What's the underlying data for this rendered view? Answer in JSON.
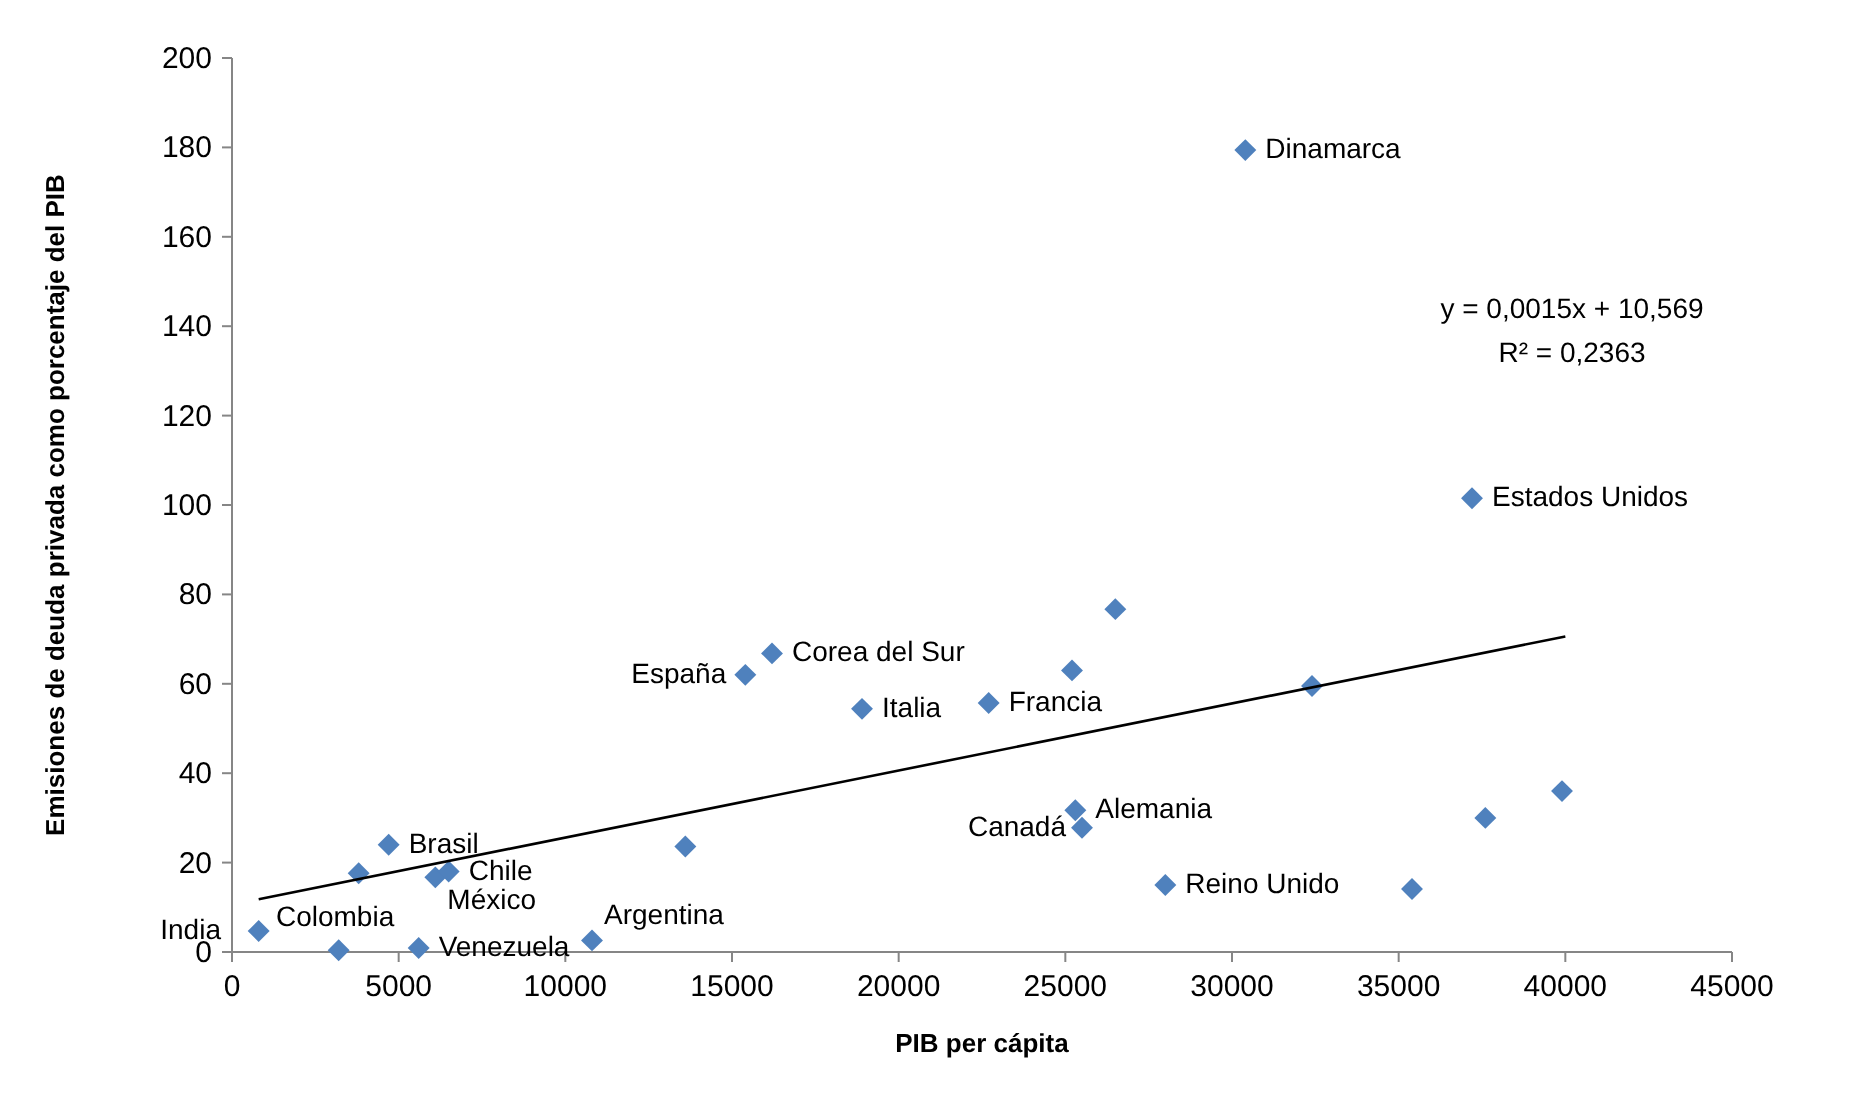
{
  "chart_data": {
    "type": "scatter",
    "xlabel": "PIB per cápita",
    "ylabel": "Emisiones de deuda privada como porcentaje del PIB",
    "xlim": [
      0,
      45000
    ],
    "xticks": [
      0,
      5000,
      10000,
      15000,
      20000,
      25000,
      30000,
      35000,
      40000,
      45000
    ],
    "ylim": [
      0,
      200
    ],
    "yticks": [
      0,
      20,
      40,
      60,
      80,
      100,
      120,
      140,
      160,
      180,
      200
    ],
    "grid": false,
    "marker": "diamond",
    "series": [
      {
        "color": "#4f81bd",
        "x": [
          800,
          3200,
          3800,
          4700,
          6100,
          6500,
          5600,
          10800,
          13600,
          15400,
          16200,
          18900,
          22700,
          25200,
          26500,
          25300,
          25500,
          28000,
          30400,
          32400,
          35400,
          37200,
          37600,
          39900
        ],
        "values": [
          4.7,
          0.4,
          17.6,
          24,
          16.7,
          18,
          0.9,
          2.6,
          23.6,
          62,
          66.8,
          54.4,
          55.7,
          63,
          76.7,
          31.7,
          27.8,
          15,
          179.4,
          59.5,
          14.1,
          101.5,
          30,
          36
        ]
      },
      {
        "type": "line",
        "color": "#000000",
        "marker": "none",
        "x": [
          800,
          40000
        ],
        "values": [
          11.8,
          70.6
        ]
      }
    ],
    "annotations": [
      {
        "text": "India",
        "x": 800,
        "y": 4.7
      },
      {
        "text": "Colombia",
        "x": 3200,
        "y": 0.4
      },
      {
        "text": "Brasil",
        "x": 4700,
        "y": 24
      },
      {
        "text": "México",
        "x": 6100,
        "y": 16.7
      },
      {
        "text": "Chile",
        "x": 6500,
        "y": 18
      },
      {
        "text": "Venezuela",
        "x": 5600,
        "y": 0.9
      },
      {
        "text": "Argentina",
        "x": 10800,
        "y": 2.6
      },
      {
        "text": "España",
        "x": 15400,
        "y": 62
      },
      {
        "text": "Corea del Sur",
        "x": 16200,
        "y": 66.8
      },
      {
        "text": "Italia",
        "x": 18900,
        "y": 54.4
      },
      {
        "text": "Francia",
        "x": 22700,
        "y": 55.7
      },
      {
        "text": "Alemania",
        "x": 25300,
        "y": 31.7
      },
      {
        "text": "Canadá",
        "x": 25500,
        "y": 27.8
      },
      {
        "text": "Reino Unido",
        "x": 28000,
        "y": 15
      },
      {
        "text": "Dinamarca",
        "x": 30400,
        "y": 179.4
      },
      {
        "text": "Estados Unidos",
        "x": 37200,
        "y": 101.5
      },
      "y = 0,0015x + 10,569",
      "R² = 0,2363"
    ]
  }
}
